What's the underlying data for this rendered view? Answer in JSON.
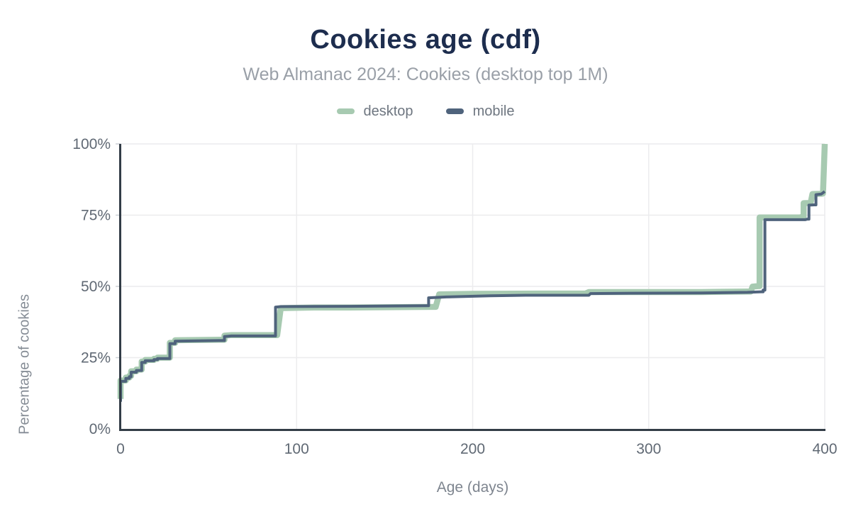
{
  "header": {
    "title": "Cookies age (cdf)",
    "subtitle": "Web Almanac 2024: Cookies (desktop top 1M)"
  },
  "legend": {
    "items": [
      {
        "label": "desktop",
        "color": "#a7cab1"
      },
      {
        "label": "mobile",
        "color": "#4f637c"
      }
    ]
  },
  "colors": {
    "background": "#ffffff",
    "title_text": "#1d2d4e",
    "subtitle_text": "#9aa0a8",
    "legend_text": "#6e7680",
    "tick_text": "#606974",
    "axis_title_text": "#7e858f",
    "grid": "#ececee",
    "tick_mark": "#ccd1d6",
    "axis_line": "#333d47",
    "desktop_series": "#a7cab1",
    "mobile_series": "#4f637c"
  },
  "chart_data": {
    "type": "line",
    "subtype": "step-cdf",
    "title": "Cookies age (cdf)",
    "subtitle": "Web Almanac 2024: Cookies (desktop top 1M)",
    "xlabel": "Age (days)",
    "ylabel": "Percentage of cookies",
    "xlim": [
      0,
      400
    ],
    "ylim": [
      0,
      100
    ],
    "grid": true,
    "legend_position": "top",
    "x_ticks": [
      {
        "value": 0,
        "label": "0"
      },
      {
        "value": 100,
        "label": "100"
      },
      {
        "value": 200,
        "label": "200"
      },
      {
        "value": 300,
        "label": "300"
      },
      {
        "value": 400,
        "label": "400"
      }
    ],
    "y_ticks": [
      {
        "value": 0,
        "label": "0%"
      },
      {
        "value": 25,
        "label": "25%"
      },
      {
        "value": 50,
        "label": "50%"
      },
      {
        "value": 75,
        "label": "75%"
      },
      {
        "value": 100,
        "label": "100%"
      }
    ],
    "series": [
      {
        "name": "desktop",
        "color": "#a7cab1",
        "points": [
          [
            0,
            10.5
          ],
          [
            0,
            17
          ],
          [
            3,
            17
          ],
          [
            3,
            18
          ],
          [
            5,
            18
          ],
          [
            5,
            18.6
          ],
          [
            6,
            18.6
          ],
          [
            6,
            20.2
          ],
          [
            9,
            20.2
          ],
          [
            9,
            20.8
          ],
          [
            12,
            20.8
          ],
          [
            12,
            23.6
          ],
          [
            14,
            23.6
          ],
          [
            14,
            24.2
          ],
          [
            19,
            24.2
          ],
          [
            19,
            24.6
          ],
          [
            21,
            24.6
          ],
          [
            21,
            25
          ],
          [
            28,
            25
          ],
          [
            28,
            30.2
          ],
          [
            31,
            30.2
          ],
          [
            31,
            31.1
          ],
          [
            56,
            31.3
          ],
          [
            59,
            31.3
          ],
          [
            59,
            32.7
          ],
          [
            63,
            32.9
          ],
          [
            89,
            32.9
          ],
          [
            89,
            33
          ],
          [
            91,
            42.4
          ],
          [
            110,
            42.6
          ],
          [
            130,
            42.6
          ],
          [
            178,
            42.8
          ],
          [
            179,
            42.8
          ],
          [
            181,
            47.2
          ],
          [
            200,
            47.4
          ],
          [
            240,
            47.5
          ],
          [
            264,
            47.5
          ],
          [
            266,
            48
          ],
          [
            330,
            48
          ],
          [
            356,
            48.2
          ],
          [
            358,
            48.2
          ],
          [
            359,
            49.9
          ],
          [
            362,
            50.1
          ],
          [
            363,
            50.1
          ],
          [
            363,
            74.2
          ],
          [
            386,
            74.2
          ],
          [
            387,
            74.4
          ],
          [
            388,
            74.4
          ],
          [
            388,
            79.2
          ],
          [
            392,
            79.3
          ],
          [
            393,
            82.4
          ],
          [
            398,
            82.5
          ],
          [
            399,
            82.6
          ],
          [
            400,
            100
          ]
        ]
      },
      {
        "name": "mobile",
        "color": "#4f637c",
        "points": [
          [
            0,
            9.5
          ],
          [
            0,
            16.7
          ],
          [
            3,
            16.7
          ],
          [
            3,
            17.7
          ],
          [
            5,
            17.7
          ],
          [
            5,
            18.3
          ],
          [
            6,
            18.3
          ],
          [
            6,
            19.9
          ],
          [
            9,
            19.9
          ],
          [
            9,
            20.5
          ],
          [
            12,
            20.5
          ],
          [
            12,
            23.3
          ],
          [
            14,
            23.3
          ],
          [
            14,
            23.9
          ],
          [
            19,
            23.9
          ],
          [
            19,
            24.3
          ],
          [
            21,
            24.3
          ],
          [
            21,
            24.7
          ],
          [
            28,
            24.7
          ],
          [
            28,
            29.9
          ],
          [
            31,
            29.9
          ],
          [
            31,
            30.8
          ],
          [
            56,
            31
          ],
          [
            59,
            31
          ],
          [
            59,
            32.4
          ],
          [
            63,
            32.6
          ],
          [
            88,
            32.6
          ],
          [
            88,
            42.7
          ],
          [
            91,
            42.9
          ],
          [
            130,
            43
          ],
          [
            174,
            43.2
          ],
          [
            175,
            43.2
          ],
          [
            175,
            46
          ],
          [
            185,
            46.3
          ],
          [
            210,
            46.7
          ],
          [
            230,
            46.9
          ],
          [
            266,
            46.9
          ],
          [
            267,
            47.5
          ],
          [
            290,
            47.6
          ],
          [
            330,
            47.7
          ],
          [
            356,
            47.9
          ],
          [
            364,
            48.1
          ],
          [
            365,
            48.1
          ],
          [
            365,
            48.7
          ],
          [
            366,
            48.7
          ],
          [
            366,
            73.4
          ],
          [
            389,
            73.4
          ],
          [
            390,
            73.6
          ],
          [
            391,
            73.6
          ],
          [
            391,
            78.5
          ],
          [
            394,
            78.6
          ],
          [
            395,
            78.6
          ],
          [
            395,
            82.2
          ],
          [
            398,
            82.4
          ],
          [
            400,
            83.3
          ]
        ]
      }
    ]
  }
}
